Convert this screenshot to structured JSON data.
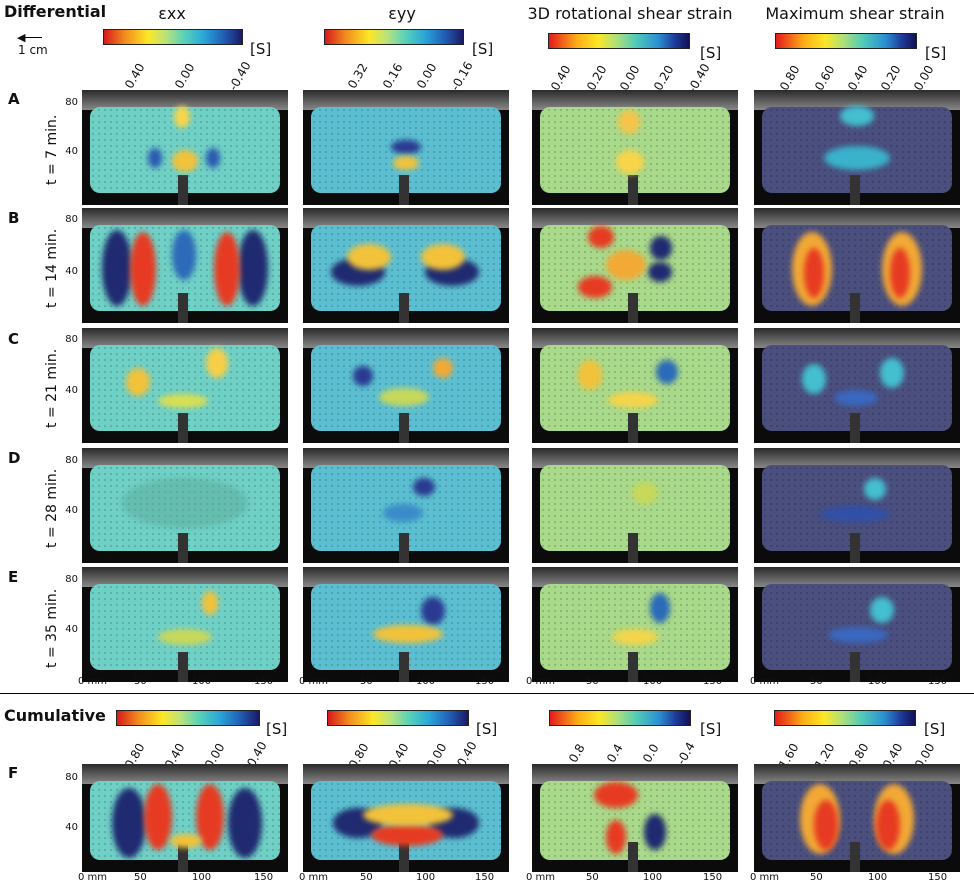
{
  "differential": {
    "title": "Differential",
    "scale_bar_label": "1 cm",
    "columns": [
      {
        "title": "εxx",
        "ticks": [
          "0.40",
          "0.00",
          "-0.40"
        ]
      },
      {
        "title": "εyy",
        "ticks": [
          "0.32",
          "0.16",
          "0.00",
          "-0.16"
        ]
      },
      {
        "title": "3D rotational shear strain",
        "ticks": [
          "0.40",
          "0.20",
          "0.00",
          "0.20",
          "-0.40"
        ]
      },
      {
        "title": "Maximum shear strain",
        "ticks": [
          "0.80",
          "0.60",
          "0.40",
          "0.20",
          "0.00"
        ]
      }
    ],
    "unit": "[S]",
    "rows": [
      {
        "letter": "A",
        "time": "t = 7 min."
      },
      {
        "letter": "B",
        "time": "t = 14 min."
      },
      {
        "letter": "C",
        "time": "t = 21 min."
      },
      {
        "letter": "D",
        "time": "t = 28 min."
      },
      {
        "letter": "E",
        "time": "t = 35 min."
      }
    ]
  },
  "cumulative": {
    "title": "Cumulative",
    "columns": [
      {
        "ticks": [
          "0.80",
          "0.40",
          "0.00",
          "-0.40"
        ]
      },
      {
        "ticks": [
          "0.80",
          "0.40",
          "0.00",
          "-0.40"
        ]
      },
      {
        "ticks": [
          "0.8",
          "0.4",
          "0.0",
          "-0.4"
        ]
      },
      {
        "ticks": [
          "1.60",
          "1.20",
          "0.80",
          "0.40",
          "0.00"
        ]
      }
    ],
    "unit": "[S]",
    "rows": [
      {
        "letter": "F"
      }
    ]
  },
  "y_ticks": [
    "80",
    "40"
  ],
  "x_ticks": [
    "0 mm",
    "50",
    "100",
    "150"
  ]
}
